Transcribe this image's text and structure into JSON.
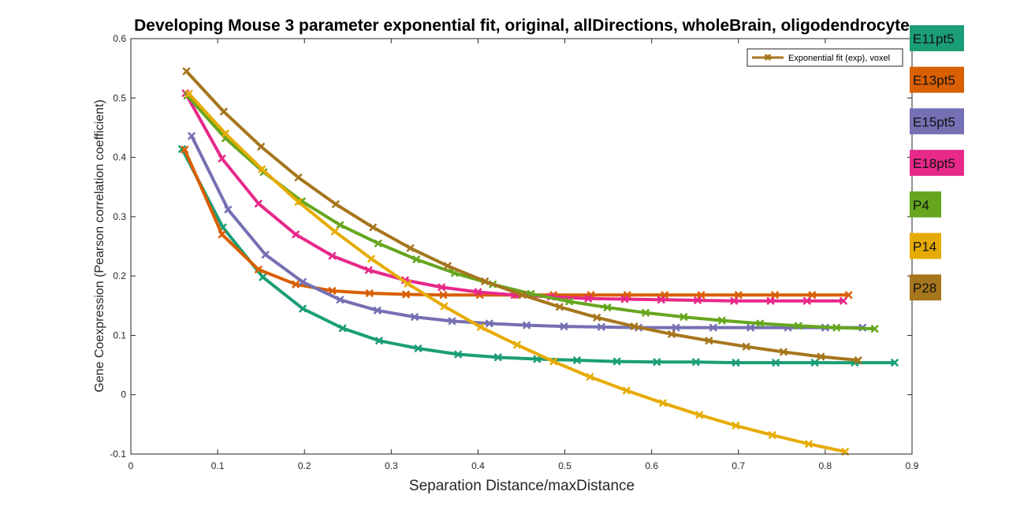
{
  "chart_data": {
    "type": "line",
    "title": "Developing Mouse 3 parameter exponential fit, original, allDirections, wholeBrain, oligodendrocyte",
    "xlabel": "Separation Distance/maxDistance",
    "ylabel": "Gene Coexpression (Pearson correlation coefficient)",
    "xlim": [
      0,
      0.9
    ],
    "ylim": [
      -0.1,
      0.6
    ],
    "x_ticks": [
      "0",
      "0.1",
      "0.2",
      "0.3",
      "0.4",
      "0.5",
      "0.6",
      "0.7",
      "0.8",
      "0.9"
    ],
    "y_ticks": [
      "-0.1",
      "0",
      "0.1",
      "0.2",
      "0.3",
      "0.4",
      "0.5",
      "0.6"
    ],
    "grid": false,
    "legend": {
      "placement": "top-right",
      "entries": [
        "Exponential fit (exp), voxel"
      ]
    },
    "series": [
      {
        "name": "E11pt5",
        "color": "#1b9e77",
        "x": [
          0.059,
          0.106,
          0.152,
          0.198,
          0.244,
          0.286,
          0.331,
          0.377,
          0.423,
          0.468,
          0.514,
          0.56,
          0.606,
          0.651,
          0.697,
          0.743,
          0.788,
          0.834,
          0.88
        ],
        "y": [
          0.414,
          0.282,
          0.198,
          0.145,
          0.112,
          0.091,
          0.078,
          0.068,
          0.063,
          0.06,
          0.058,
          0.056,
          0.055,
          0.055,
          0.054,
          0.054,
          0.054,
          0.054,
          0.054
        ]
      },
      {
        "name": "E13pt5",
        "color": "#d95f02",
        "x": [
          0.062,
          0.105,
          0.147,
          0.19,
          0.232,
          0.275,
          0.317,
          0.36,
          0.402,
          0.445,
          0.487,
          0.53,
          0.572,
          0.615,
          0.657,
          0.7,
          0.742,
          0.785,
          0.827
        ],
        "y": [
          0.413,
          0.27,
          0.211,
          0.186,
          0.175,
          0.171,
          0.169,
          0.168,
          0.168,
          0.168,
          0.168,
          0.168,
          0.168,
          0.168,
          0.168,
          0.168,
          0.168,
          0.168,
          0.168
        ]
      },
      {
        "name": "E15pt5",
        "color": "#7570b3",
        "x": [
          0.07,
          0.112,
          0.155,
          0.198,
          0.241,
          0.284,
          0.327,
          0.37,
          0.413,
          0.456,
          0.499,
          0.542,
          0.585,
          0.628,
          0.671,
          0.714,
          0.757,
          0.8,
          0.843
        ],
        "y": [
          0.436,
          0.312,
          0.236,
          0.19,
          0.16,
          0.142,
          0.131,
          0.124,
          0.12,
          0.117,
          0.115,
          0.114,
          0.113,
          0.113,
          0.113,
          0.113,
          0.113,
          0.113,
          0.113
        ]
      },
      {
        "name": "E18pt5",
        "color": "#e7298a",
        "x": [
          0.063,
          0.105,
          0.147,
          0.19,
          0.232,
          0.274,
          0.316,
          0.358,
          0.4,
          0.442,
          0.484,
          0.527,
          0.569,
          0.611,
          0.653,
          0.695,
          0.737,
          0.779,
          0.821
        ],
        "y": [
          0.508,
          0.398,
          0.322,
          0.27,
          0.234,
          0.21,
          0.193,
          0.181,
          0.173,
          0.168,
          0.165,
          0.162,
          0.161,
          0.16,
          0.159,
          0.158,
          0.158,
          0.158,
          0.158
        ]
      },
      {
        "name": "P4",
        "color": "#66a61e",
        "x": [
          0.065,
          0.109,
          0.153,
          0.197,
          0.241,
          0.285,
          0.329,
          0.373,
          0.417,
          0.461,
          0.505,
          0.549,
          0.593,
          0.637,
          0.681,
          0.725,
          0.769,
          0.813,
          0.857
        ],
        "y": [
          0.504,
          0.432,
          0.375,
          0.326,
          0.286,
          0.255,
          0.228,
          0.205,
          0.186,
          0.17,
          0.157,
          0.147,
          0.138,
          0.131,
          0.125,
          0.12,
          0.116,
          0.113,
          0.111
        ]
      },
      {
        "name": "P14",
        "color": "#e6ab02",
        "x": [
          0.067,
          0.109,
          0.151,
          0.193,
          0.235,
          0.277,
          0.319,
          0.361,
          0.403,
          0.445,
          0.487,
          0.529,
          0.571,
          0.613,
          0.655,
          0.697,
          0.739,
          0.781,
          0.823
        ],
        "y": [
          0.507,
          0.44,
          0.38,
          0.325,
          0.275,
          0.229,
          0.187,
          0.149,
          0.114,
          0.084,
          0.056,
          0.03,
          0.007,
          -0.014,
          -0.034,
          -0.052,
          -0.068,
          -0.083,
          -0.096
        ]
      },
      {
        "name": "P28",
        "color": "#a6761d",
        "x": [
          0.064,
          0.107,
          0.15,
          0.193,
          0.236,
          0.279,
          0.322,
          0.365,
          0.408,
          0.451,
          0.494,
          0.537,
          0.58,
          0.623,
          0.666,
          0.709,
          0.752,
          0.795,
          0.838
        ],
        "y": [
          0.545,
          0.477,
          0.418,
          0.366,
          0.321,
          0.282,
          0.247,
          0.217,
          0.191,
          0.168,
          0.148,
          0.13,
          0.115,
          0.102,
          0.091,
          0.081,
          0.072,
          0.064,
          0.058
        ]
      }
    ]
  }
}
